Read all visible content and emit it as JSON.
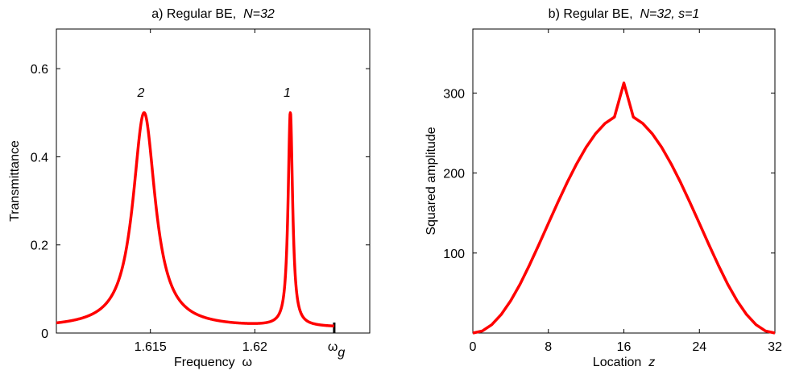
{
  "chart_data": [
    {
      "type": "line",
      "title": {
        "prefix": "a) Regular BE,",
        "italic": "N=32"
      },
      "xlabel": {
        "text": "Frequency",
        "symbol": "ω"
      },
      "ylabel": "Transmittance",
      "xlim": [
        1.6105,
        1.6255
      ],
      "ylim": [
        0,
        0.69
      ],
      "xticks": [
        {
          "value": 1.615,
          "label": "1.615"
        },
        {
          "value": 1.62,
          "label": "1.62"
        }
      ],
      "special_xtick": {
        "value": 1.6238,
        "main": "ω",
        "sub": "g"
      },
      "yticks": [
        {
          "value": 0,
          "label": "0"
        },
        {
          "value": 0.2,
          "label": "0.2"
        },
        {
          "value": 0.4,
          "label": "0.4"
        },
        {
          "value": 0.6,
          "label": "0.6"
        }
      ],
      "peaks": [
        {
          "label": "2",
          "x": 1.6147,
          "y": 0.5
        },
        {
          "label": "1",
          "x": 1.6217,
          "y": 0.5
        }
      ],
      "series": [
        {
          "color": "#ff0000",
          "baseline": 0.0116,
          "resonances": [
            {
              "center": 1.6147,
              "halfwidth": 0.00065
            },
            {
              "center": 1.6217,
              "halfwidth": 0.00013
            }
          ],
          "x_range": [
            1.6105,
            1.6255
          ]
        }
      ],
      "grid": false
    },
    {
      "type": "line",
      "title": {
        "prefix": "b) Regular BE,",
        "italic": "N=32, s=1"
      },
      "xlabel": {
        "text": "Location",
        "symbol": "z"
      },
      "ylabel": "Squared amplitude",
      "xlim": [
        0,
        32
      ],
      "ylim": [
        0,
        380
      ],
      "xticks": [
        {
          "value": 0,
          "label": "0"
        },
        {
          "value": 8,
          "label": "8"
        },
        {
          "value": 16,
          "label": "16"
        },
        {
          "value": 24,
          "label": "24"
        },
        {
          "value": 32,
          "label": "32"
        }
      ],
      "yticks": [
        {
          "value": 100,
          "label": "100"
        },
        {
          "value": 200,
          "label": "200"
        },
        {
          "value": 300,
          "label": "300"
        }
      ],
      "series": [
        {
          "color": "#ff0000",
          "x": [
            0,
            1,
            2,
            3,
            4,
            5,
            6,
            7,
            8,
            9,
            10,
            11,
            12,
            13,
            14,
            15,
            16,
            17,
            18,
            19,
            20,
            21,
            22,
            23,
            24,
            25,
            26,
            27,
            28,
            29,
            30,
            31,
            32
          ],
          "y": [
            0,
            2.6,
            10.4,
            23.1,
            40.2,
            61.0,
            85.0,
            110.6,
            137.0,
            163.2,
            188.4,
            211.6,
            232.2,
            249.2,
            262.0,
            270.0,
            312.5,
            270.0,
            262.0,
            249.2,
            232.2,
            211.6,
            188.4,
            163.2,
            137.0,
            110.6,
            85.0,
            61.0,
            40.2,
            23.1,
            10.4,
            2.6,
            0
          ]
        }
      ],
      "grid": false
    }
  ]
}
